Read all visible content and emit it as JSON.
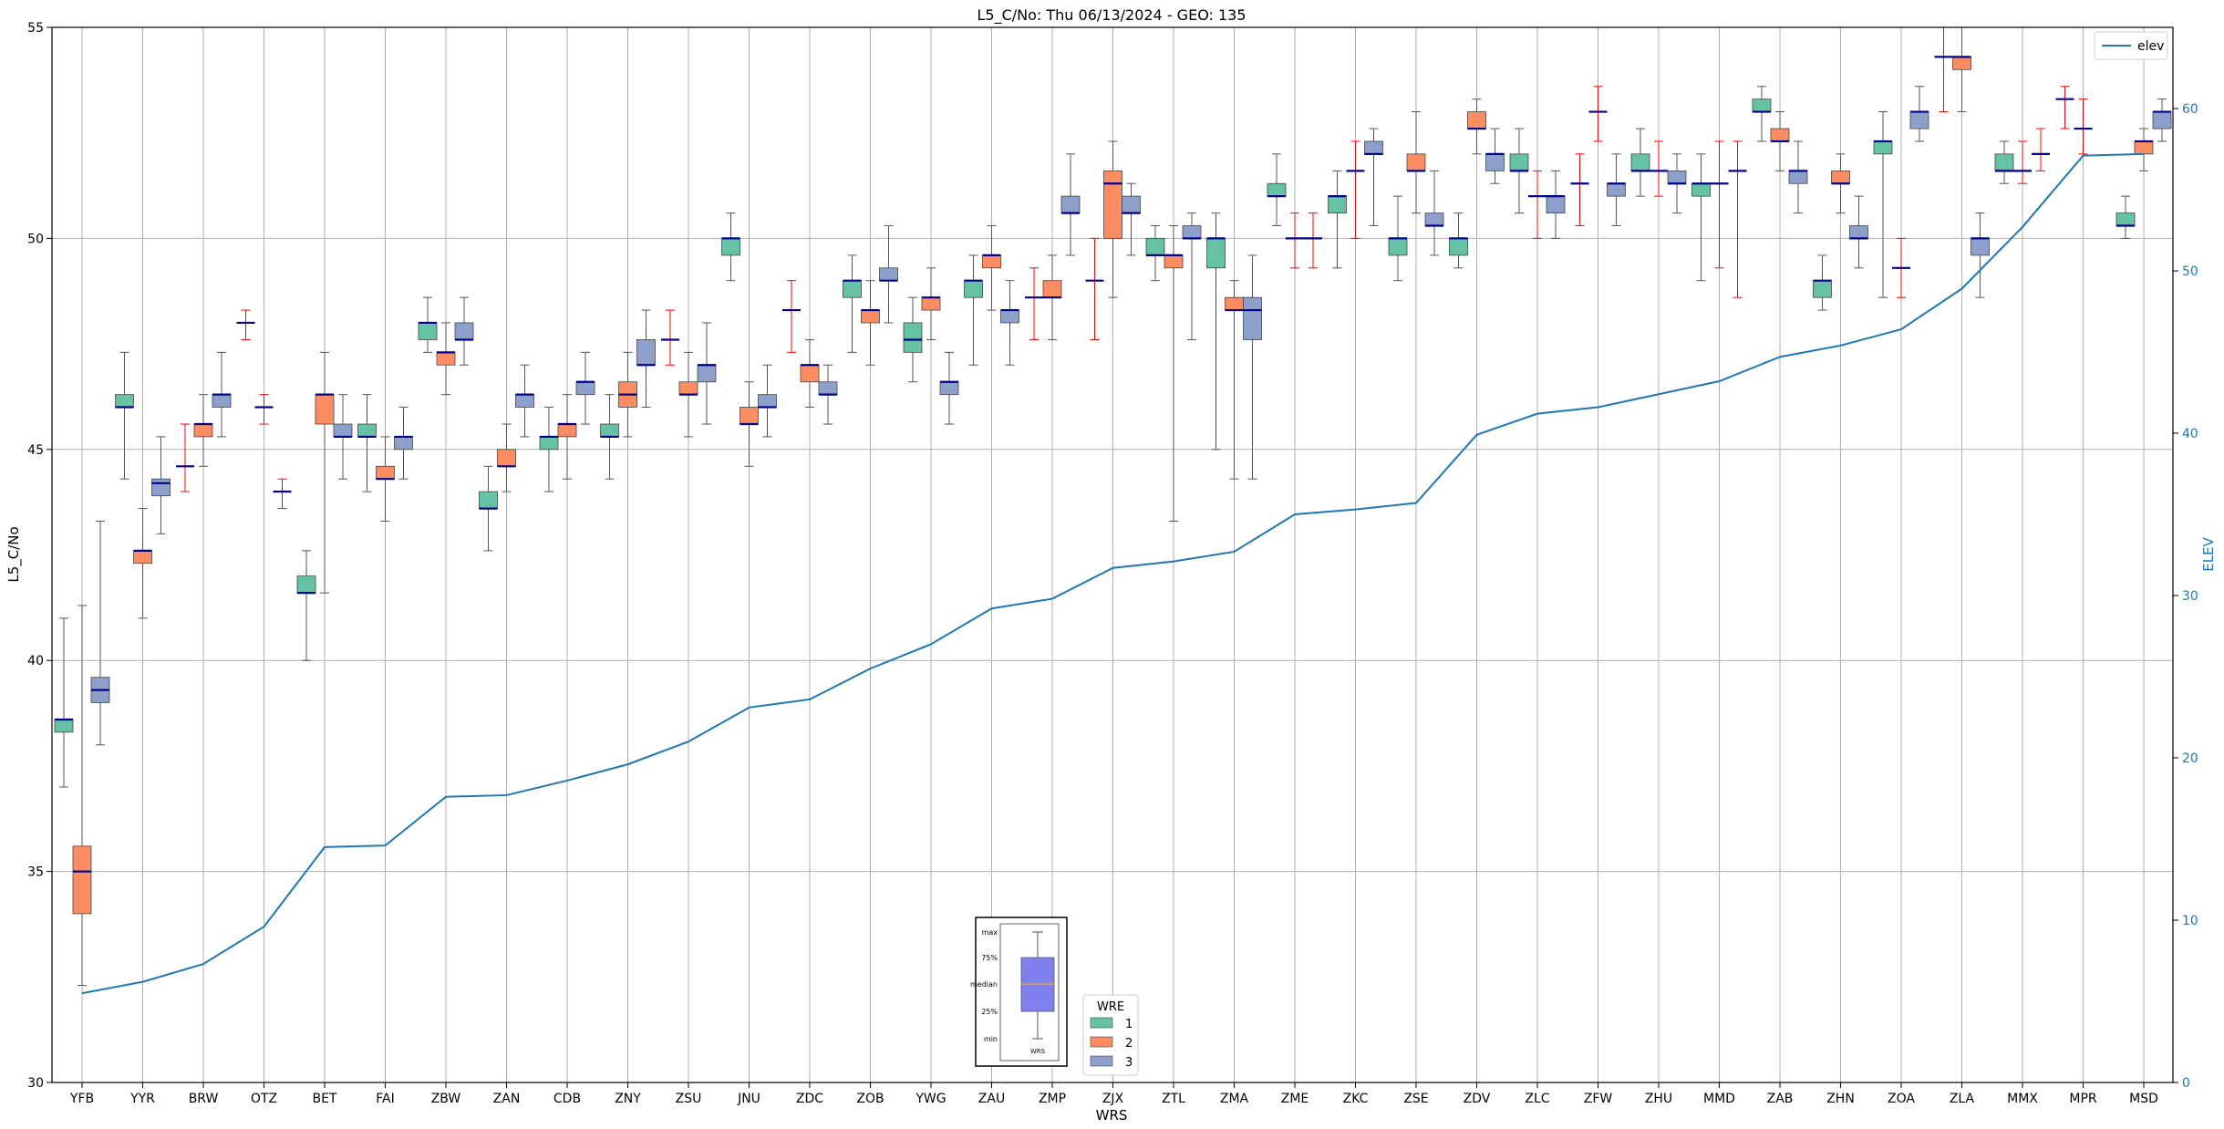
{
  "chart_data": {
    "type": "box",
    "title": "L5_C/No: Thu 06/13/2024 - GEO: 135",
    "xlabel": "WRS",
    "ylabel": "L5_C/No",
    "y2label": "ELEV",
    "ylim": [
      30,
      55
    ],
    "y2lim": [
      0,
      65
    ],
    "yticks": [
      30,
      35,
      40,
      45,
      50,
      55
    ],
    "y2ticks": [
      0,
      10,
      20,
      30,
      40,
      50,
      60
    ],
    "grid": true,
    "colors": {
      "wre1": "#66c2a5",
      "wre2": "#fc8d62",
      "wre3": "#8da0cb",
      "median": "#00008b",
      "whisker_single": "#ff0000",
      "elev_line": "#1f77b4"
    },
    "categories": [
      "YFB",
      "YYR",
      "BRW",
      "OTZ",
      "BET",
      "FAI",
      "ZBW",
      "ZAN",
      "CDB",
      "ZNY",
      "ZSU",
      "JNU",
      "ZDC",
      "ZOB",
      "YWG",
      "ZAU",
      "ZMP",
      "ZJX",
      "ZTL",
      "ZMA",
      "ZME",
      "ZKC",
      "ZSE",
      "ZDV",
      "ZLC",
      "ZFW",
      "ZHU",
      "MMD",
      "ZAB",
      "ZHN",
      "ZOA",
      "ZLA",
      "MMX",
      "MPR",
      "MSD"
    ],
    "boxes": [
      {
        "site": "YFB",
        "wre": 1,
        "min": 37,
        "q1": 38.3,
        "med": 38.6,
        "q3": 38.6,
        "max": 41
      },
      {
        "site": "YFB",
        "wre": 2,
        "min": 32.3,
        "q1": 34,
        "med": 35,
        "q3": 35.6,
        "max": 41.3
      },
      {
        "site": "YFB",
        "wre": 3,
        "min": 38,
        "q1": 39,
        "med": 39.3,
        "q3": 39.6,
        "max": 43.3
      },
      {
        "site": "YYR",
        "wre": 1,
        "min": 44.3,
        "q1": 46,
        "med": 46,
        "q3": 46.3,
        "max": 47.3
      },
      {
        "site": "YYR",
        "wre": 2,
        "min": 41,
        "q1": 42.3,
        "med": 42.6,
        "q3": 42.6,
        "max": 43.6
      },
      {
        "site": "YYR",
        "wre": 3,
        "min": 43,
        "q1": 43.9,
        "med": 44.2,
        "q3": 44.3,
        "max": 45.3
      },
      {
        "site": "BRW",
        "wre": 1,
        "min": 44,
        "q1": 44.6,
        "med": 44.6,
        "q3": 44.6,
        "max": 45.6
      },
      {
        "site": "BRW",
        "wre": 2,
        "min": 44.6,
        "q1": 45.3,
        "med": 45.6,
        "q3": 45.6,
        "max": 46.3
      },
      {
        "site": "BRW",
        "wre": 3,
        "min": 45.3,
        "q1": 46,
        "med": 46.3,
        "q3": 46.3,
        "max": 47.3
      },
      {
        "site": "OTZ",
        "wre": 1,
        "min": 47.6,
        "q1": 48,
        "med": 48,
        "q3": 48,
        "max": 48.3
      },
      {
        "site": "OTZ",
        "wre": 2,
        "min": 45.6,
        "q1": 46,
        "med": 46,
        "q3": 46,
        "max": 46.3
      },
      {
        "site": "OTZ",
        "wre": 3,
        "min": 43.6,
        "q1": 44,
        "med": 44,
        "q3": 44,
        "max": 44.3
      },
      {
        "site": "BET",
        "wre": 1,
        "min": 40,
        "q1": 41.6,
        "med": 41.6,
        "q3": 42,
        "max": 42.6
      },
      {
        "site": "BET",
        "wre": 2,
        "min": 41.6,
        "q1": 45.6,
        "med": 46.3,
        "q3": 46.3,
        "max": 47.3
      },
      {
        "site": "BET",
        "wre": 3,
        "min": 44.3,
        "q1": 45.3,
        "med": 45.3,
        "q3": 45.6,
        "max": 46.3
      },
      {
        "site": "FAI",
        "wre": 1,
        "min": 44,
        "q1": 45.3,
        "med": 45.3,
        "q3": 45.6,
        "max": 46.3
      },
      {
        "site": "FAI",
        "wre": 2,
        "min": 43.3,
        "q1": 44.3,
        "med": 44.3,
        "q3": 44.6,
        "max": 45.3
      },
      {
        "site": "FAI",
        "wre": 3,
        "min": 44.3,
        "q1": 45,
        "med": 45.3,
        "q3": 45.3,
        "max": 46
      },
      {
        "site": "ZBW",
        "wre": 1,
        "min": 47.3,
        "q1": 47.6,
        "med": 48,
        "q3": 48,
        "max": 48.6
      },
      {
        "site": "ZBW",
        "wre": 2,
        "min": 46.3,
        "q1": 47,
        "med": 47.3,
        "q3": 47.3,
        "max": 48
      },
      {
        "site": "ZBW",
        "wre": 3,
        "min": 47,
        "q1": 47.6,
        "med": 47.6,
        "q3": 48,
        "max": 48.6
      },
      {
        "site": "ZAN",
        "wre": 1,
        "min": 42.6,
        "q1": 43.6,
        "med": 43.6,
        "q3": 44,
        "max": 44.6
      },
      {
        "site": "ZAN",
        "wre": 2,
        "min": 44,
        "q1": 44.6,
        "med": 44.6,
        "q3": 45,
        "max": 45.6
      },
      {
        "site": "ZAN",
        "wre": 3,
        "min": 45.3,
        "q1": 46,
        "med": 46.3,
        "q3": 46.3,
        "max": 47
      },
      {
        "site": "CDB",
        "wre": 1,
        "min": 44,
        "q1": 45,
        "med": 45.3,
        "q3": 45.3,
        "max": 46
      },
      {
        "site": "CDB",
        "wre": 2,
        "min": 44.3,
        "q1": 45.3,
        "med": 45.6,
        "q3": 45.6,
        "max": 46.3
      },
      {
        "site": "CDB",
        "wre": 3,
        "min": 45.6,
        "q1": 46.3,
        "med": 46.6,
        "q3": 46.6,
        "max": 47.3
      },
      {
        "site": "ZNY",
        "wre": 1,
        "min": 44.3,
        "q1": 45.3,
        "med": 45.3,
        "q3": 45.6,
        "max": 46.3
      },
      {
        "site": "ZNY",
        "wre": 2,
        "min": 45.3,
        "q1": 46,
        "med": 46.3,
        "q3": 46.6,
        "max": 47.3
      },
      {
        "site": "ZNY",
        "wre": 3,
        "min": 46,
        "q1": 47,
        "med": 47,
        "q3": 47.6,
        "max": 48.3
      },
      {
        "site": "ZSU",
        "wre": 1,
        "min": 47,
        "q1": 47.6,
        "med": 47.6,
        "q3": 47.6,
        "max": 48.3
      },
      {
        "site": "ZSU",
        "wre": 2,
        "min": 45.3,
        "q1": 46.3,
        "med": 46.3,
        "q3": 46.6,
        "max": 47.3
      },
      {
        "site": "ZSU",
        "wre": 3,
        "min": 45.6,
        "q1": 46.6,
        "med": 47,
        "q3": 47,
        "max": 48
      },
      {
        "site": "JNU",
        "wre": 1,
        "min": 49,
        "q1": 49.6,
        "med": 50,
        "q3": 50,
        "max": 50.6
      },
      {
        "site": "JNU",
        "wre": 2,
        "min": 44.6,
        "q1": 45.6,
        "med": 45.6,
        "q3": 46,
        "max": 46.6
      },
      {
        "site": "JNU",
        "wre": 3,
        "min": 45.3,
        "q1": 46,
        "med": 46,
        "q3": 46.3,
        "max": 47
      },
      {
        "site": "ZDC",
        "wre": 1,
        "min": 47.3,
        "q1": 48.3,
        "med": 48.3,
        "q3": 48.3,
        "max": 49
      },
      {
        "site": "ZDC",
        "wre": 2,
        "min": 46,
        "q1": 46.6,
        "med": 47,
        "q3": 47,
        "max": 47.6
      },
      {
        "site": "ZDC",
        "wre": 3,
        "min": 45.6,
        "q1": 46.3,
        "med": 46.3,
        "q3": 46.6,
        "max": 47
      },
      {
        "site": "ZOB",
        "wre": 1,
        "min": 47.3,
        "q1": 48.6,
        "med": 49,
        "q3": 49,
        "max": 49.6
      },
      {
        "site": "ZOB",
        "wre": 2,
        "min": 47,
        "q1": 48,
        "med": 48.3,
        "q3": 48.3,
        "max": 49
      },
      {
        "site": "ZOB",
        "wre": 3,
        "min": 48,
        "q1": 49,
        "med": 49,
        "q3": 49.3,
        "max": 50.3
      },
      {
        "site": "YWG",
        "wre": 1,
        "min": 46.6,
        "q1": 47.3,
        "med": 47.6,
        "q3": 48,
        "max": 48.6
      },
      {
        "site": "YWG",
        "wre": 2,
        "min": 47.6,
        "q1": 48.3,
        "med": 48.6,
        "q3": 48.6,
        "max": 49.3
      },
      {
        "site": "YWG",
        "wre": 3,
        "min": 45.6,
        "q1": 46.3,
        "med": 46.6,
        "q3": 46.6,
        "max": 47.3
      },
      {
        "site": "ZAU",
        "wre": 1,
        "min": 47,
        "q1": 48.6,
        "med": 49,
        "q3": 49,
        "max": 49.6
      },
      {
        "site": "ZAU",
        "wre": 2,
        "min": 48.3,
        "q1": 49.3,
        "med": 49.6,
        "q3": 49.6,
        "max": 50.3
      },
      {
        "site": "ZAU",
        "wre": 3,
        "min": 47,
        "q1": 48,
        "med": 48.3,
        "q3": 48.3,
        "max": 49
      },
      {
        "site": "ZMP",
        "wre": 1,
        "min": 47.6,
        "q1": 48.6,
        "med": 48.6,
        "q3": 48.6,
        "max": 49.3
      },
      {
        "site": "ZMP",
        "wre": 2,
        "min": 47.6,
        "q1": 48.6,
        "med": 48.6,
        "q3": 49,
        "max": 49.6
      },
      {
        "site": "ZMP",
        "wre": 3,
        "min": 49.6,
        "q1": 50.6,
        "med": 50.6,
        "q3": 51,
        "max": 52
      },
      {
        "site": "ZJX",
        "wre": 1,
        "min": 47.6,
        "q1": 49,
        "med": 49,
        "q3": 49,
        "max": 50
      },
      {
        "site": "ZJX",
        "wre": 2,
        "min": 48.6,
        "q1": 50,
        "med": 51.3,
        "q3": 51.6,
        "max": 52.3
      },
      {
        "site": "ZJX",
        "wre": 3,
        "min": 49.6,
        "q1": 50.6,
        "med": 50.6,
        "q3": 51,
        "max": 51.3
      },
      {
        "site": "ZTL",
        "wre": 1,
        "min": 49,
        "q1": 49.6,
        "med": 49.6,
        "q3": 50,
        "max": 50.3
      },
      {
        "site": "ZTL",
        "wre": 2,
        "min": 43.3,
        "q1": 49.3,
        "med": 49.6,
        "q3": 49.6,
        "max": 50.3
      },
      {
        "site": "ZTL",
        "wre": 3,
        "min": 47.6,
        "q1": 50,
        "med": 50,
        "q3": 50.3,
        "max": 50.6
      },
      {
        "site": "ZMA",
        "wre": 1,
        "min": 45,
        "q1": 49.3,
        "med": 50,
        "q3": 50,
        "max": 50.6
      },
      {
        "site": "ZMA",
        "wre": 2,
        "min": 44.3,
        "q1": 48.3,
        "med": 48.3,
        "q3": 48.6,
        "max": 49
      },
      {
        "site": "ZMA",
        "wre": 3,
        "min": 44.3,
        "q1": 47.6,
        "med": 48.3,
        "q3": 48.6,
        "max": 49.6
      },
      {
        "site": "ZME",
        "wre": 1,
        "min": 50.3,
        "q1": 51,
        "med": 51,
        "q3": 51.3,
        "max": 52
      },
      {
        "site": "ZME",
        "wre": 2,
        "min": 49.3,
        "q1": 50,
        "med": 50,
        "q3": 50,
        "max": 50.6
      },
      {
        "site": "ZME",
        "wre": 3,
        "min": 49.3,
        "q1": 50,
        "med": 50,
        "q3": 50,
        "max": 50.6
      },
      {
        "site": "ZKC",
        "wre": 1,
        "min": 49.3,
        "q1": 50.6,
        "med": 51,
        "q3": 51,
        "max": 51.6
      },
      {
        "site": "ZKC",
        "wre": 2,
        "min": 50,
        "q1": 51.6,
        "med": 51.6,
        "q3": 51.6,
        "max": 52.3
      },
      {
        "site": "ZKC",
        "wre": 3,
        "min": 50.3,
        "q1": 52,
        "med": 52,
        "q3": 52.3,
        "max": 52.6
      },
      {
        "site": "ZSE",
        "wre": 1,
        "min": 49,
        "q1": 49.6,
        "med": 50,
        "q3": 50,
        "max": 51
      },
      {
        "site": "ZSE",
        "wre": 2,
        "min": 50.6,
        "q1": 51.6,
        "med": 51.6,
        "q3": 52,
        "max": 53
      },
      {
        "site": "ZSE",
        "wre": 3,
        "min": 49.6,
        "q1": 50.3,
        "med": 50.3,
        "q3": 50.6,
        "max": 51.6
      },
      {
        "site": "ZDV",
        "wre": 1,
        "min": 49.3,
        "q1": 49.6,
        "med": 50,
        "q3": 50,
        "max": 50.6
      },
      {
        "site": "ZDV",
        "wre": 2,
        "min": 52,
        "q1": 52.6,
        "med": 52.6,
        "q3": 53,
        "max": 53.3
      },
      {
        "site": "ZDV",
        "wre": 3,
        "min": 51.3,
        "q1": 51.6,
        "med": 52,
        "q3": 52,
        "max": 52.6
      },
      {
        "site": "ZLC",
        "wre": 1,
        "min": 50.6,
        "q1": 51.6,
        "med": 51.6,
        "q3": 52,
        "max": 52.6
      },
      {
        "site": "ZLC",
        "wre": 2,
        "min": 50,
        "q1": 51,
        "med": 51,
        "q3": 51,
        "max": 51.6
      },
      {
        "site": "ZLC",
        "wre": 3,
        "min": 50,
        "q1": 50.6,
        "med": 51,
        "q3": 51,
        "max": 51.6
      },
      {
        "site": "ZFW",
        "wre": 1,
        "min": 50.3,
        "q1": 51.3,
        "med": 51.3,
        "q3": 51.3,
        "max": 52
      },
      {
        "site": "ZFW",
        "wre": 2,
        "min": 52.3,
        "q1": 53,
        "med": 53,
        "q3": 53,
        "max": 53.6
      },
      {
        "site": "ZFW",
        "wre": 3,
        "min": 50.3,
        "q1": 51,
        "med": 51.3,
        "q3": 51.3,
        "max": 52
      },
      {
        "site": "ZHU",
        "wre": 1,
        "min": 51,
        "q1": 51.6,
        "med": 51.6,
        "q3": 52,
        "max": 52.6
      },
      {
        "site": "ZHU",
        "wre": 2,
        "min": 51,
        "q1": 51.6,
        "med": 51.6,
        "q3": 51.6,
        "max": 52.3
      },
      {
        "site": "ZHU",
        "wre": 3,
        "min": 50.6,
        "q1": 51.3,
        "med": 51.3,
        "q3": 51.6,
        "max": 52
      },
      {
        "site": "MMD",
        "wre": 1,
        "min": 49,
        "q1": 51,
        "med": 51.3,
        "q3": 51.3,
        "max": 52
      },
      {
        "site": "MMD",
        "wre": 2,
        "min": 49.3,
        "q1": 51.3,
        "med": 51.3,
        "q3": 51.3,
        "max": 52.3
      },
      {
        "site": "MMD",
        "wre": 3,
        "min": 48.6,
        "q1": 51.6,
        "med": 51.6,
        "q3": 51.6,
        "max": 52.3
      },
      {
        "site": "ZAB",
        "wre": 1,
        "min": 52.3,
        "q1": 53,
        "med": 53,
        "q3": 53.3,
        "max": 53.6
      },
      {
        "site": "ZAB",
        "wre": 2,
        "min": 51.6,
        "q1": 52.3,
        "med": 52.3,
        "q3": 52.6,
        "max": 53
      },
      {
        "site": "ZAB",
        "wre": 3,
        "min": 50.6,
        "q1": 51.3,
        "med": 51.6,
        "q3": 51.6,
        "max": 52.3
      },
      {
        "site": "ZHN",
        "wre": 1,
        "min": 48.3,
        "q1": 48.6,
        "med": 49,
        "q3": 49,
        "max": 49.6
      },
      {
        "site": "ZHN",
        "wre": 2,
        "min": 50.6,
        "q1": 51.3,
        "med": 51.3,
        "q3": 51.6,
        "max": 52
      },
      {
        "site": "ZHN",
        "wre": 3,
        "min": 49.3,
        "q1": 50,
        "med": 50,
        "q3": 50.3,
        "max": 51
      },
      {
        "site": "ZOA",
        "wre": 1,
        "min": 48.6,
        "q1": 52,
        "med": 52.3,
        "q3": 52.3,
        "max": 53
      },
      {
        "site": "ZOA",
        "wre": 2,
        "min": 48.6,
        "q1": 49.3,
        "med": 49.3,
        "q3": 49.3,
        "max": 50
      },
      {
        "site": "ZOA",
        "wre": 3,
        "min": 52.3,
        "q1": 52.6,
        "med": 53,
        "q3": 53,
        "max": 53.6
      },
      {
        "site": "ZLA",
        "wre": 1,
        "min": 53,
        "q1": 54.3,
        "med": 54.3,
        "q3": 54.3,
        "max": 55
      },
      {
        "site": "ZLA",
        "wre": 2,
        "min": 53,
        "q1": 54,
        "med": 54.3,
        "q3": 54.3,
        "max": 55
      },
      {
        "site": "ZLA",
        "wre": 3,
        "min": 48.6,
        "q1": 49.6,
        "med": 50,
        "q3": 50,
        "max": 50.6
      },
      {
        "site": "MMX",
        "wre": 1,
        "min": 51.3,
        "q1": 51.6,
        "med": 51.6,
        "q3": 52,
        "max": 52.3
      },
      {
        "site": "MMX",
        "wre": 2,
        "min": 51.3,
        "q1": 51.6,
        "med": 51.6,
        "q3": 51.6,
        "max": 52.3
      },
      {
        "site": "MMX",
        "wre": 3,
        "min": 51.6,
        "q1": 52,
        "med": 52,
        "q3": 52,
        "max": 52.6
      },
      {
        "site": "MPR",
        "wre": 1,
        "min": 52.6,
        "q1": 53.3,
        "med": 53.3,
        "q3": 53.3,
        "max": 53.6
      },
      {
        "site": "MPR",
        "wre": 2,
        "min": 52,
        "q1": 52.6,
        "med": 52.6,
        "q3": 52.6,
        "max": 53.3
      },
      {
        "site": "MSD",
        "wre": 1,
        "min": 50,
        "q1": 50.3,
        "med": 50.3,
        "q3": 50.6,
        "max": 51
      },
      {
        "site": "MSD",
        "wre": 2,
        "min": 51.6,
        "q1": 52,
        "med": 52.3,
        "q3": 52.3,
        "max": 52.6
      },
      {
        "site": "MSD",
        "wre": 3,
        "min": 52.3,
        "q1": 52.6,
        "med": 53,
        "q3": 53,
        "max": 53.3
      }
    ],
    "elev": [
      5.5,
      6.2,
      7.3,
      9.6,
      14.5,
      14.6,
      17.6,
      17.7,
      18.6,
      19.6,
      21.0,
      23.1,
      23.6,
      25.5,
      27.0,
      29.2,
      29.8,
      31.7,
      32.1,
      32.7,
      35.0,
      35.3,
      35.7,
      39.9,
      41.2,
      41.6,
      42.4,
      43.2,
      44.7,
      45.4,
      46.4,
      48.9,
      52.7,
      57.1,
      57.2
    ],
    "legend_elev": "elev",
    "legend_wre": {
      "title": "WRE",
      "items": [
        "1",
        "2",
        "3"
      ]
    },
    "inset": {
      "labels": [
        "max",
        "75%",
        "median",
        "25%",
        "min"
      ],
      "xlabel": "WRS"
    }
  }
}
